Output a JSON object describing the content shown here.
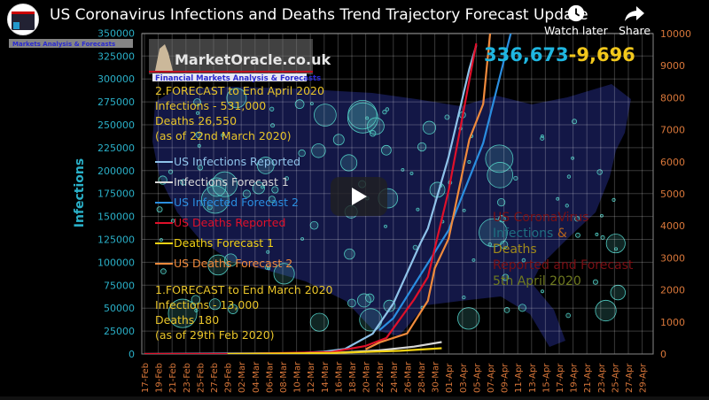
{
  "player": {
    "video_title": "US Coronavirus Infections and Deaths Trend Trajectory Forecast Update",
    "watch_later_label": "Watch later",
    "share_label": "Share",
    "icons": {
      "avatar": "channel-avatar",
      "watch_later": "clock-icon",
      "share": "share-arrow-icon",
      "play": "play-icon"
    }
  },
  "thumbnail": {
    "header_parts": [
      {
        "text": "US CoronaVirus ",
        "color": "#7a0f14"
      },
      {
        "text": "Infections ",
        "color": "#1f6f80"
      },
      {
        "text": "& ",
        "color": "#b5651d"
      },
      {
        "text": "Deaths ",
        "color": "#a08a1a"
      },
      {
        "text": "Reported and Forecast ",
        "color": "#7a0f14"
      },
      {
        "text": "5th April 2020",
        "color": "#6f7a1f"
      }
    ],
    "logo_title": "MarketOracle.co.uk",
    "logo_tagline": "Financial Markets Analysis & Forecasts",
    "channel_tag_tagline": "Markets Analysis & Forecasts",
    "totals": {
      "infections": "336,673",
      "deaths": "-9,696",
      "infections_color": "#1fb6e0",
      "deaths_color": "#f2c81c"
    },
    "forecast2": [
      "2.FORECAST to End April 2020",
      "Infections - 531,000",
      "Deaths 26,550",
      "(as of  22nd March  2020)"
    ],
    "forecast1": [
      "1.FORECAST to End March 2020",
      "Infections - 13,000",
      "Deaths 180",
      "(as of  29th Feb  2020)"
    ]
  },
  "chart_data": {
    "type": "line",
    "ylabel": "Infections",
    "y_left": {
      "range": [
        0,
        350000
      ],
      "ticks": [
        0,
        25000,
        50000,
        75000,
        100000,
        125000,
        150000,
        175000,
        200000,
        225000,
        250000,
        275000,
        300000,
        325000,
        350000
      ],
      "color": "#2ab0c8"
    },
    "y_right": {
      "range": [
        0,
        10000
      ],
      "ticks": [
        0,
        1000,
        2000,
        3000,
        4000,
        5000,
        6000,
        7000,
        8000,
        9000,
        10000
      ],
      "color": "#d9773a"
    },
    "x_ticks": [
      "17-Feb",
      "19-Feb",
      "21-Feb",
      "23-Feb",
      "25-Feb",
      "27-Feb",
      "29-Feb",
      "02-Mar",
      "04-Mar",
      "06-Mar",
      "08-Mar",
      "10-Mar",
      "12-Mar",
      "14-Mar",
      "16-Mar",
      "18-Mar",
      "20-Mar",
      "22-Mar",
      "24-Mar",
      "26-Mar",
      "28-Mar",
      "30-Mar",
      "01-Apr",
      "03-Apr",
      "05-Apr",
      "07-Apr",
      "09-Apr",
      "11-Apr",
      "13-Apr",
      "15-Apr",
      "17-Apr",
      "19-Apr",
      "21-Apr",
      "23-Apr",
      "25-Apr",
      "27-Apr",
      "29-Apr"
    ],
    "x_tick_color": "#d9773a",
    "grid": true,
    "legend_placement": "left",
    "series": [
      {
        "name": "US Infections Reported",
        "color": "#8fc3ea",
        "axis": "left",
        "points": [
          [
            "17-Feb",
            0
          ],
          [
            "10-Mar",
            900
          ],
          [
            "14-Mar",
            2500
          ],
          [
            "17-Mar",
            5500
          ],
          [
            "21-Mar",
            22000
          ],
          [
            "24-Mar",
            55000
          ],
          [
            "28-Mar",
            122000
          ],
          [
            "29-Mar",
            137000
          ],
          [
            "01-Apr",
            215000
          ],
          [
            "04-Apr",
            311000
          ],
          [
            "05-Apr",
            336673
          ]
        ]
      },
      {
        "name": "Infections Forecast 1",
        "color": "#d8d8d8",
        "axis": "left",
        "points": [
          [
            "01-Mar",
            0
          ],
          [
            "15-Mar",
            1000
          ],
          [
            "22-Mar",
            4000
          ],
          [
            "27-Mar",
            8000
          ],
          [
            "31-Mar",
            13000
          ]
        ]
      },
      {
        "name": "US Infected Forecast 2",
        "color": "#2a8ee0",
        "axis": "left",
        "points": [
          [
            "22-Mar",
            26000
          ],
          [
            "24-Mar",
            39000
          ],
          [
            "01-Apr",
            135000
          ],
          [
            "06-Apr",
            230000
          ],
          [
            "10-Apr",
            350000
          ]
        ]
      },
      {
        "name": "US Deaths Reported",
        "color": "#e0102a",
        "axis": "right",
        "points": [
          [
            "17-Feb",
            0
          ],
          [
            "01-Mar",
            1
          ],
          [
            "15-Mar",
            60
          ],
          [
            "20-Mar",
            250
          ],
          [
            "23-Mar",
            500
          ],
          [
            "27-Mar",
            1700
          ],
          [
            "29-Mar",
            2400
          ],
          [
            "01-Apr",
            5100
          ],
          [
            "03-Apr",
            7400
          ],
          [
            "05-Apr",
            9696
          ]
        ]
      },
      {
        "name": "Deaths Forecast 1",
        "color": "#f2d214",
        "axis": "right",
        "points": [
          [
            "29-Feb",
            0
          ],
          [
            "15-Mar",
            30
          ],
          [
            "25-Mar",
            100
          ],
          [
            "31-Mar",
            180
          ]
        ]
      },
      {
        "name": "US Deaths Forecast 2",
        "color": "#f08a3c",
        "axis": "right",
        "points": [
          [
            "20-Mar",
            150
          ],
          [
            "22-Mar",
            360
          ],
          [
            "26-Mar",
            640
          ],
          [
            "29-Mar",
            1660
          ],
          [
            "30-Mar",
            2680
          ],
          [
            "01-Apr",
            3600
          ],
          [
            "04-Apr",
            6700
          ],
          [
            "06-Apr",
            7800
          ],
          [
            "07-Apr",
            10000
          ]
        ]
      }
    ]
  }
}
